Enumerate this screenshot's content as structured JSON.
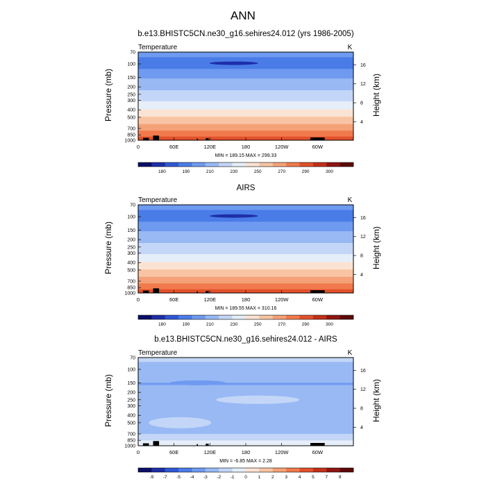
{
  "figure": {
    "title": "ANN"
  },
  "chart_data": [
    {
      "type": "heatmap",
      "title": "b.e13.BHISTC5CN.ne30_g16.sehires24.012 (yrs 1986-2005)",
      "left_label": "Temperature",
      "right_label": "K",
      "ylabel": "Pressure (mb)",
      "y2label": "Height (km)",
      "x_ticks": [
        "0",
        "60E",
        "120E",
        "180",
        "120W",
        "60W"
      ],
      "x_tick_values": [
        0,
        60,
        120,
        180,
        240,
        300
      ],
      "xlim": [
        0,
        360
      ],
      "y_ticks": [
        "70",
        "100",
        "150",
        "200",
        "250",
        "300",
        "400",
        "500",
        "700",
        "850",
        "1000"
      ],
      "y_tick_values": [
        70,
        100,
        150,
        200,
        250,
        300,
        400,
        500,
        700,
        850,
        1000
      ],
      "ylim": [
        1000,
        70
      ],
      "y_scale": "log",
      "y2_ticks": [
        "16",
        "12",
        "8",
        "4"
      ],
      "y2_tick_values": [
        16,
        12,
        8,
        4
      ],
      "stats": "MIN = 189.15  MAX = 299.33",
      "colorbar_labels": [
        "180",
        "190",
        "210",
        "230",
        "250",
        "270",
        "290",
        "300"
      ],
      "colorbar_colors": [
        "#0b0f66",
        "#1d2fa8",
        "#2f58d6",
        "#4a7ce8",
        "#6f9af0",
        "#98b9f4",
        "#c4d6f7",
        "#e6eef9",
        "#fbe3d3",
        "#f8c4a3",
        "#f5a177",
        "#f17a4c",
        "#e2512b",
        "#c3301a",
        "#8f1510",
        "#5e0906"
      ],
      "band_levels": [
        195,
        205,
        215,
        225,
        235,
        245,
        255,
        265,
        275,
        285,
        295
      ],
      "bands_by_pressure": [
        {
          "p": 70,
          "t": 209
        },
        {
          "p": 100,
          "t": 200
        },
        {
          "p": 150,
          "t": 214
        },
        {
          "p": 200,
          "t": 222
        },
        {
          "p": 250,
          "t": 228
        },
        {
          "p": 300,
          "t": 234
        },
        {
          "p": 400,
          "t": 246
        },
        {
          "p": 500,
          "t": 256
        },
        {
          "p": 700,
          "t": 271
        },
        {
          "p": 850,
          "t": 281
        },
        {
          "p": 1000,
          "t": 292
        }
      ]
    },
    {
      "type": "heatmap",
      "title": "AIRS",
      "left_label": "Temperature",
      "right_label": "K",
      "ylabel": "Pressure (mb)",
      "y2label": "Height (km)",
      "x_ticks": [
        "0",
        "60E",
        "120E",
        "180",
        "120W",
        "60W"
      ],
      "x_tick_values": [
        0,
        60,
        120,
        180,
        240,
        300
      ],
      "xlim": [
        0,
        360
      ],
      "y_ticks": [
        "70",
        "100",
        "150",
        "200",
        "250",
        "300",
        "400",
        "500",
        "700",
        "850",
        "1000"
      ],
      "y_tick_values": [
        70,
        100,
        150,
        200,
        250,
        300,
        400,
        500,
        700,
        850,
        1000
      ],
      "ylim": [
        1000,
        70
      ],
      "y_scale": "log",
      "y2_ticks": [
        "16",
        "12",
        "8",
        "4"
      ],
      "y2_tick_values": [
        16,
        12,
        8,
        4
      ],
      "stats": "MIN = 189.55  MAX = 310.16",
      "colorbar_labels": [
        "180",
        "190",
        "210",
        "230",
        "250",
        "270",
        "290",
        "300"
      ],
      "colorbar_colors": [
        "#0b0f66",
        "#1d2fa8",
        "#2f58d6",
        "#4a7ce8",
        "#6f9af0",
        "#98b9f4",
        "#c4d6f7",
        "#e6eef9",
        "#fbe3d3",
        "#f8c4a3",
        "#f5a177",
        "#f17a4c",
        "#e2512b",
        "#c3301a",
        "#8f1510",
        "#5e0906"
      ],
      "band_levels": [
        195,
        205,
        215,
        225,
        235,
        245,
        255,
        265,
        275,
        285,
        295
      ],
      "bands_by_pressure": [
        {
          "p": 70,
          "t": 209
        },
        {
          "p": 100,
          "t": 200
        },
        {
          "p": 150,
          "t": 214
        },
        {
          "p": 200,
          "t": 222
        },
        {
          "p": 250,
          "t": 228
        },
        {
          "p": 300,
          "t": 234
        },
        {
          "p": 400,
          "t": 246
        },
        {
          "p": 500,
          "t": 256
        },
        {
          "p": 700,
          "t": 271
        },
        {
          "p": 850,
          "t": 281
        },
        {
          "p": 1000,
          "t": 293
        }
      ]
    },
    {
      "type": "heatmap",
      "title": "b.e13.BHISTC5CN.ne30_g16.sehires24.012 - AIRS",
      "left_label": "Temperature",
      "right_label": "K",
      "ylabel": "Pressure (mb)",
      "y2label": "Height (km)",
      "x_ticks": [
        "0",
        "60E",
        "120E",
        "180",
        "120W",
        "60W"
      ],
      "x_tick_values": [
        0,
        60,
        120,
        180,
        240,
        300
      ],
      "xlim": [
        0,
        360
      ],
      "y_ticks": [
        "70",
        "100",
        "150",
        "200",
        "250",
        "300",
        "400",
        "500",
        "700",
        "850",
        "1000"
      ],
      "y_tick_values": [
        70,
        100,
        150,
        200,
        250,
        300,
        400,
        500,
        700,
        850,
        1000
      ],
      "ylim": [
        1000,
        70
      ],
      "y_scale": "log",
      "y2_ticks": [
        "16",
        "12",
        "8",
        "4"
      ],
      "y2_tick_values": [
        16,
        12,
        8,
        4
      ],
      "stats": "MIN = -6.85  MAX =  2.28",
      "colorbar_labels": [
        "-9",
        "-7",
        "-5",
        "-4",
        "-3",
        "-2",
        "-1",
        "0",
        "1",
        "2",
        "3",
        "4",
        "5",
        "7",
        "9"
      ],
      "colorbar_colors": [
        "#0b0f66",
        "#1d2fa8",
        "#2f58d6",
        "#4a7ce8",
        "#6f9af0",
        "#98b9f4",
        "#c4d6f7",
        "#e6eef9",
        "#fbe3d3",
        "#f8c4a3",
        "#f5a177",
        "#f17a4c",
        "#e2512b",
        "#c3301a",
        "#8f1510",
        "#5e0906"
      ],
      "regions": [
        {
          "level": "-1 to 0",
          "p_top": 70,
          "p_bottom": 80
        },
        {
          "level": "-2 to -1",
          "p_top": 80,
          "p_bottom": 135
        },
        {
          "level": "-3 to -2",
          "p_top": 150,
          "p_bottom": 160
        },
        {
          "level": "-2 to -1",
          "p_top": 160,
          "p_bottom": 700
        },
        {
          "level": "-1 to 0",
          "p_top": 700,
          "p_bottom": 850
        },
        {
          "level": "0 to 1",
          "p_top": 850,
          "p_bottom": 1000
        }
      ]
    }
  ]
}
